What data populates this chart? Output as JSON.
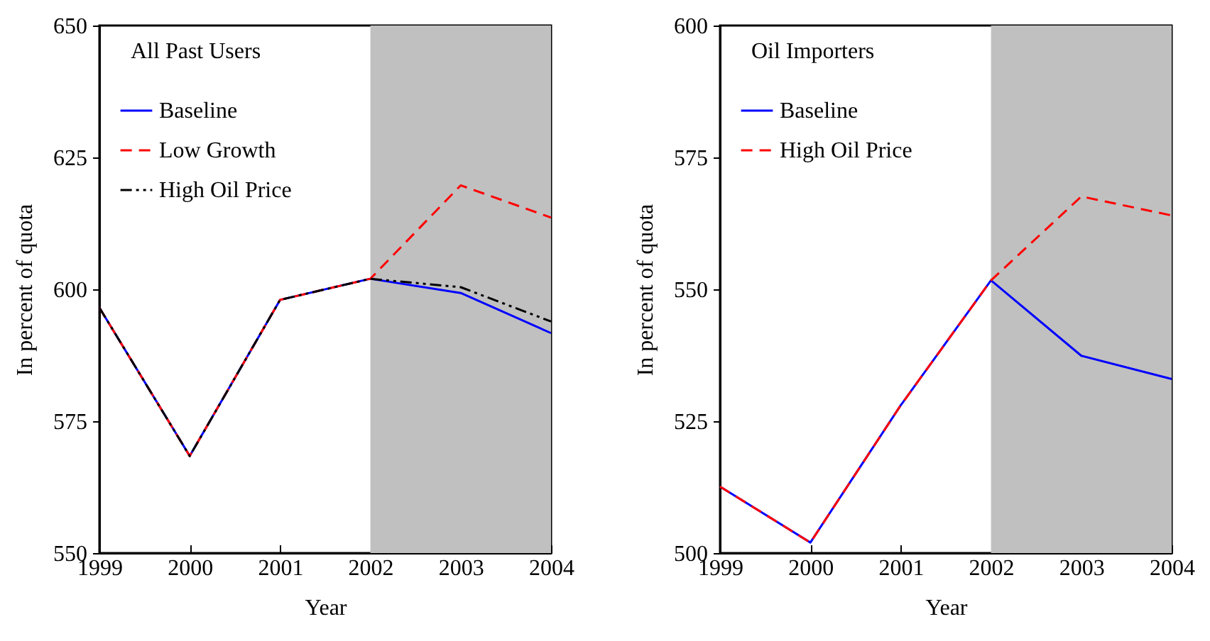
{
  "chart_data": [
    {
      "type": "line",
      "title": "All Past Users",
      "xlabel": "Year",
      "ylabel": "In percent of quota",
      "x": [
        1999,
        2000,
        2001,
        2002,
        2003,
        2004
      ],
      "series": [
        {
          "name": "Baseline",
          "color": "#0000ff",
          "line_style": "solid",
          "values": [
            596.5,
            568.4,
            598,
            602,
            599.3,
            591.7
          ]
        },
        {
          "name": "Low Growth",
          "color": "#ff0000",
          "line_style": "dashed",
          "values": [
            596.5,
            568.4,
            598,
            602,
            619.7,
            613.6
          ]
        },
        {
          "name": "High Oil Price",
          "color": "#000000",
          "line_style": "dashdot",
          "values": [
            596.5,
            568.4,
            598,
            602,
            600.4,
            593.9
          ]
        }
      ],
      "xlim": [
        1999,
        2004
      ],
      "xticks": [
        1999,
        2000,
        2001,
        2002,
        2003,
        2004
      ],
      "ylim": [
        550,
        650
      ],
      "yticks": [
        550,
        575,
        600,
        625,
        650
      ],
      "bands": [
        {
          "axis": "x",
          "from": 2002,
          "to": 2004,
          "color": "#c0c0c0"
        }
      ],
      "legend": "top left",
      "grid": false
    },
    {
      "type": "line",
      "title": "Oil Importers",
      "xlabel": "Year",
      "ylabel": "In percent of quota",
      "x": [
        1999,
        2000,
        2001,
        2002,
        2003,
        2004
      ],
      "series": [
        {
          "name": "Baseline",
          "color": "#0000ff",
          "line_style": "solid",
          "values": [
            512.6,
            502,
            528,
            551.7,
            537.4,
            533
          ]
        },
        {
          "name": "High Oil Price",
          "color": "#ff0000",
          "line_style": "dashed",
          "values": [
            512.6,
            502,
            528,
            551.7,
            567.6,
            564
          ]
        }
      ],
      "xlim": [
        1999,
        2004
      ],
      "xticks": [
        1999,
        2000,
        2001,
        2002,
        2003,
        2004
      ],
      "ylim": [
        500,
        600
      ],
      "yticks": [
        500,
        525,
        550,
        575,
        600
      ],
      "bands": [
        {
          "axis": "x",
          "from": 2002,
          "to": 2004,
          "color": "#c0c0c0"
        }
      ],
      "legend": "top left",
      "grid": false
    }
  ]
}
